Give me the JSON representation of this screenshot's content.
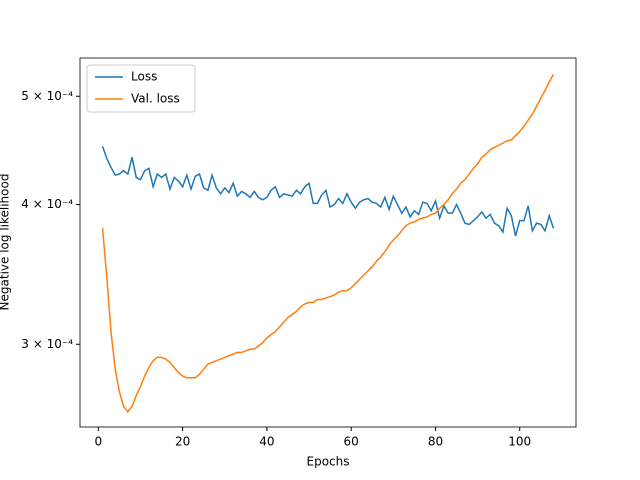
{
  "chart_data": {
    "type": "line",
    "x_label": "Epochs",
    "y_label": "Negative log likelihood",
    "log_y": true,
    "legend": "upper left",
    "xlim": [
      -4.35,
      113.35
    ],
    "xticks": [
      0,
      20,
      40,
      60,
      80,
      100
    ],
    "ylim": [
      0.000253,
      0.000541
    ],
    "yticks": [
      {
        "value": 0.0003,
        "label": "3 × 10⁻⁴"
      },
      {
        "value": 0.0004,
        "label": "4 × 10⁻⁴"
      },
      {
        "value": 0.0005,
        "label": "5 × 10⁻⁴"
      }
    ],
    "x": [
      1,
      2,
      3,
      4,
      5,
      6,
      7,
      8,
      9,
      10,
      11,
      12,
      13,
      14,
      15,
      16,
      17,
      18,
      19,
      20,
      21,
      22,
      23,
      24,
      25,
      26,
      27,
      28,
      29,
      30,
      31,
      32,
      33,
      34,
      35,
      36,
      37,
      38,
      39,
      40,
      41,
      42,
      43,
      44,
      45,
      46,
      47,
      48,
      49,
      50,
      51,
      52,
      53,
      54,
      55,
      56,
      57,
      58,
      59,
      60,
      61,
      62,
      63,
      64,
      65,
      66,
      67,
      68,
      69,
      70,
      71,
      72,
      73,
      74,
      75,
      76,
      77,
      78,
      79,
      80,
      81,
      82,
      83,
      84,
      85,
      86,
      87,
      88,
      89,
      90,
      91,
      92,
      93,
      94,
      95,
      96,
      97,
      98,
      99,
      100,
      101,
      102,
      103,
      104,
      105,
      106,
      107,
      108
    ],
    "series": [
      {
        "name": "Loss",
        "color": "#1f77b4",
        "values": [
          0.000451,
          0.00044,
          0.000432,
          0.000425,
          0.000426,
          0.000429,
          0.000426,
          0.000441,
          0.000423,
          0.000421,
          0.000429,
          0.000431,
          0.000415,
          0.000426,
          0.000423,
          0.000426,
          0.000413,
          0.000423,
          0.00042,
          0.000415,
          0.000425,
          0.000413,
          0.000424,
          0.000426,
          0.000414,
          0.000412,
          0.000425,
          0.000414,
          0.000409,
          0.000414,
          0.00041,
          0.000418,
          0.000407,
          0.000411,
          0.000409,
          0.000406,
          0.000411,
          0.000406,
          0.000404,
          0.000406,
          0.000412,
          0.000415,
          0.000406,
          0.000409,
          0.000408,
          0.000407,
          0.000412,
          0.000409,
          0.000415,
          0.000418,
          0.000401,
          0.000401,
          0.000408,
          0.000412,
          0.000398,
          0.0004,
          0.000405,
          0.000401,
          0.000409,
          0.000402,
          0.000397,
          0.000402,
          0.000404,
          0.000405,
          0.000402,
          0.000401,
          0.000398,
          0.000406,
          0.000396,
          0.000407,
          0.0004,
          0.000393,
          0.000398,
          0.00039,
          0.000395,
          0.000392,
          0.000402,
          0.000401,
          0.000395,
          0.000403,
          0.000389,
          0.000399,
          0.000393,
          0.000393,
          0.0004,
          0.000393,
          0.000385,
          0.000384,
          0.000387,
          0.00039,
          0.000394,
          0.000389,
          0.000392,
          0.000385,
          0.000383,
          0.000378,
          0.000397,
          0.000391,
          0.000375,
          0.000387,
          0.000387,
          0.000399,
          0.000379,
          0.000385,
          0.000384,
          0.000379,
          0.000391,
          0.000381
        ]
      },
      {
        "name": "Val. loss",
        "color": "#ff7f0e",
        "values": [
          0.000381,
          0.000345,
          0.000308,
          0.000285,
          0.000272,
          0.000264,
          0.000261,
          0.000264,
          0.00027,
          0.000275,
          0.000281,
          0.000286,
          0.00029,
          0.000292,
          0.000292,
          0.000291,
          0.000289,
          0.000286,
          0.000283,
          0.000281,
          0.00028,
          0.00028,
          0.00028,
          0.000282,
          0.000285,
          0.000288,
          0.000289,
          0.00029,
          0.000291,
          0.000292,
          0.000293,
          0.000294,
          0.000295,
          0.000295,
          0.000296,
          0.000297,
          0.000297,
          0.000299,
          0.000301,
          0.000304,
          0.000306,
          0.000308,
          0.000311,
          0.000314,
          0.000317,
          0.000319,
          0.000321,
          0.000324,
          0.000326,
          0.000327,
          0.000327,
          0.000329,
          0.000329,
          0.00033,
          0.000331,
          0.000332,
          0.000334,
          0.000335,
          0.000335,
          0.000337,
          0.00034,
          0.000343,
          0.000346,
          0.000349,
          0.000352,
          0.000356,
          0.000359,
          0.000363,
          0.000368,
          0.000372,
          0.000375,
          0.000379,
          0.000383,
          0.000385,
          0.000386,
          0.000388,
          0.000389,
          0.00039,
          0.000392,
          0.000393,
          0.000397,
          0.0004,
          0.000404,
          0.000409,
          0.000413,
          0.000418,
          0.000421,
          0.000426,
          0.000431,
          0.000435,
          0.000441,
          0.000444,
          0.000448,
          0.00045,
          0.000452,
          0.000454,
          0.000456,
          0.000457,
          0.000461,
          0.000465,
          0.00047,
          0.000476,
          0.000482,
          0.00049,
          0.000498,
          0.000506,
          0.000515,
          0.000523
        ]
      }
    ]
  }
}
